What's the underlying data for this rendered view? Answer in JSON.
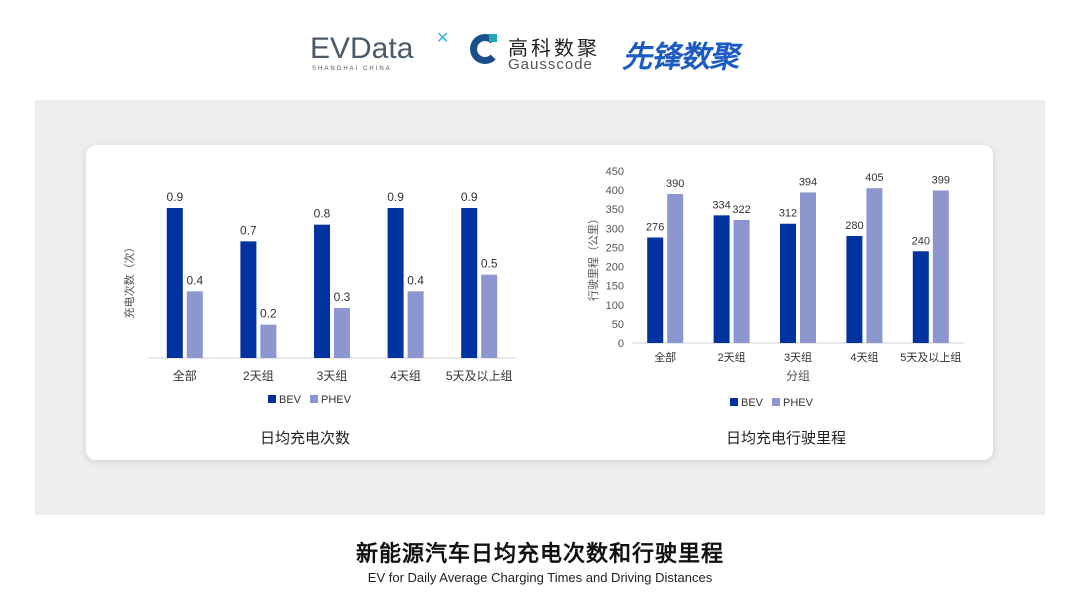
{
  "logos": {
    "evdata": "EVData",
    "evdata_sub": "SHANGHAI CHINA",
    "gauss_cn": "高科数聚",
    "gauss_en": "Gausscode",
    "xianfeng": "先锋数聚"
  },
  "caption": {
    "title": "新能源汽车日均充电次数和行驶里程",
    "subtitle": "EV for Daily Average Charging Times and Driving Distances"
  },
  "colors": {
    "BEV": "#0033a0",
    "PHEV": "#8c97d0",
    "panel": "#eeeeee"
  },
  "chart_data": [
    {
      "type": "bar",
      "title": "日均充电次数",
      "xlabel": "",
      "ylabel": "充电次数（次）",
      "categories": [
        "全部",
        "2天组",
        "3天组",
        "4天组",
        "5天及以上组"
      ],
      "series": [
        {
          "name": "BEV",
          "values": [
            0.9,
            0.7,
            0.8,
            0.9,
            0.9
          ]
        },
        {
          "name": "PHEV",
          "values": [
            0.4,
            0.2,
            0.3,
            0.4,
            0.5
          ]
        }
      ],
      "ylim": [
        0,
        1.0
      ],
      "y_axis_visible": false,
      "grid": false,
      "legend": "bottom"
    },
    {
      "type": "bar",
      "title": "日均充电行驶里程",
      "xlabel": "分组",
      "ylabel": "行驶里程（公里）",
      "categories": [
        "全部",
        "2天组",
        "3天组",
        "4天组",
        "5天及以上组"
      ],
      "series": [
        {
          "name": "BEV",
          "values": [
            276,
            334,
            312,
            280,
            240
          ]
        },
        {
          "name": "PHEV",
          "values": [
            390,
            322,
            394,
            405,
            399
          ]
        }
      ],
      "ylim": [
        0,
        450
      ],
      "yticks": [
        0,
        50,
        100,
        150,
        200,
        250,
        300,
        350,
        400,
        450
      ],
      "grid": false,
      "legend": "bottom"
    }
  ]
}
